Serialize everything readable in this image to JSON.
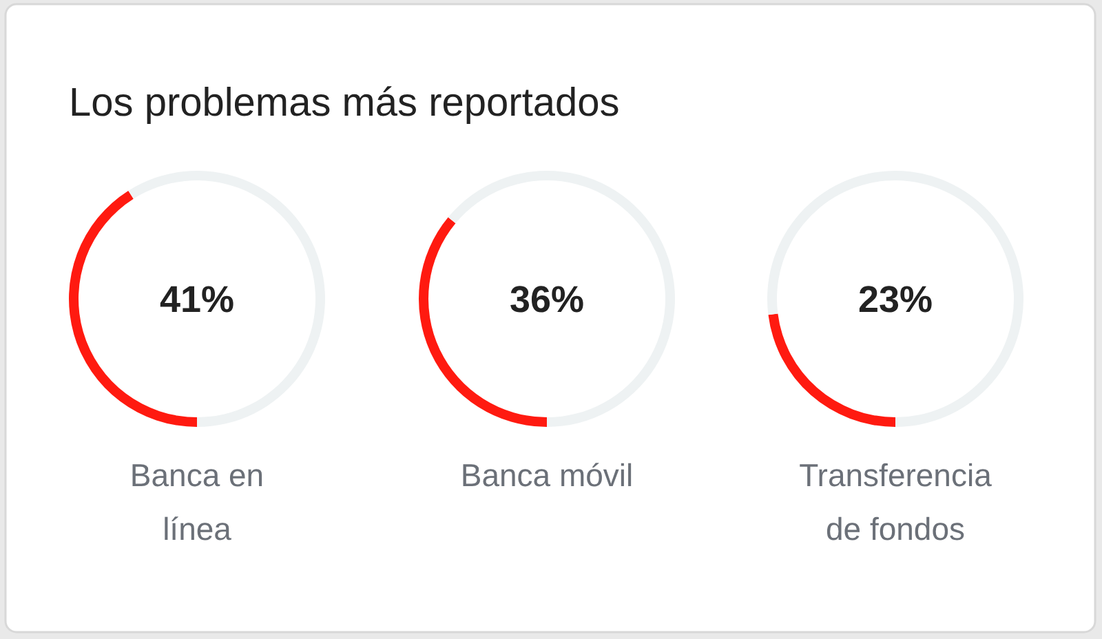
{
  "chart_data": [
    {
      "type": "donut",
      "title": "Los problemas más reportados",
      "categories": [
        "Banca en línea",
        null
      ],
      "values": [
        41,
        59
      ],
      "colors": [
        "#ff1a10",
        "#eef2f3"
      ],
      "value_labels": [
        "41%",
        null
      ]
    },
    {
      "type": "donut",
      "categories": [
        "Banca móvil",
        null
      ],
      "values": [
        36,
        64
      ],
      "colors": [
        "#ff1a10",
        "#eef2f3"
      ],
      "value_labels": [
        "36%",
        null
      ]
    },
    {
      "type": "donut",
      "categories": [
        "Transferencia de fondos",
        null
      ],
      "values": [
        23,
        77
      ],
      "colors": [
        "#ff1a10",
        "#eef2f3"
      ],
      "value_labels": [
        "23%",
        null
      ]
    }
  ]
}
